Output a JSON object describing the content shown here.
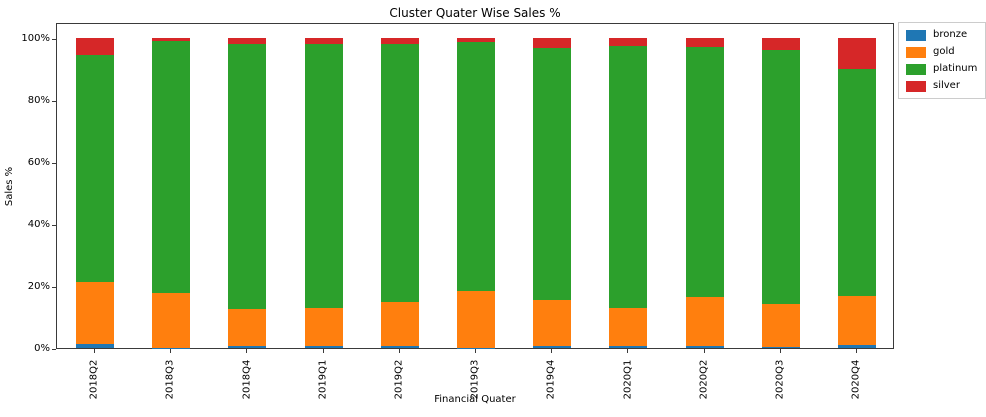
{
  "chart_data": {
    "type": "bar",
    "stacked": true,
    "units": "percent",
    "title": "Cluster Quater Wise Sales %",
    "xlabel": "Financial Quater",
    "ylabel": "Sales %",
    "ylim": [
      0,
      105
    ],
    "grid": false,
    "legend_position": "outside upper right",
    "y_ticks": [
      {
        "label": "0%",
        "value": 0
      },
      {
        "label": "20%",
        "value": 20
      },
      {
        "label": "40%",
        "value": 40
      },
      {
        "label": "60%",
        "value": 60
      },
      {
        "label": "80%",
        "value": 80
      },
      {
        "label": "100%",
        "value": 100
      }
    ],
    "categories": [
      "2018Q2",
      "2018Q3",
      "2018Q4",
      "2019Q1",
      "2019Q2",
      "2019Q3",
      "2019Q4",
      "2020Q1",
      "2020Q2",
      "2020Q3",
      "2020Q4"
    ],
    "series": [
      {
        "name": "bronze",
        "color": "#1f77b4",
        "values": [
          1.2,
          0.1,
          0.6,
          0.5,
          0.6,
          0.1,
          0.6,
          0.5,
          0.8,
          0.2,
          1.0
        ]
      },
      {
        "name": "gold",
        "color": "#ff7f0e",
        "values": [
          20.1,
          17.5,
          12.1,
          12.4,
          14.1,
          18.3,
          14.9,
          12.4,
          15.8,
          14.1,
          15.9
        ]
      },
      {
        "name": "platinum",
        "color": "#2ca02c",
        "values": [
          73.3,
          81.3,
          85.3,
          85.2,
          83.4,
          80.4,
          81.4,
          84.6,
          80.5,
          81.8,
          73.0
        ]
      },
      {
        "name": "silver",
        "color": "#d62728",
        "values": [
          5.4,
          1.1,
          2.0,
          1.9,
          1.9,
          1.2,
          3.1,
          2.5,
          2.9,
          3.9,
          10.1
        ]
      }
    ]
  }
}
